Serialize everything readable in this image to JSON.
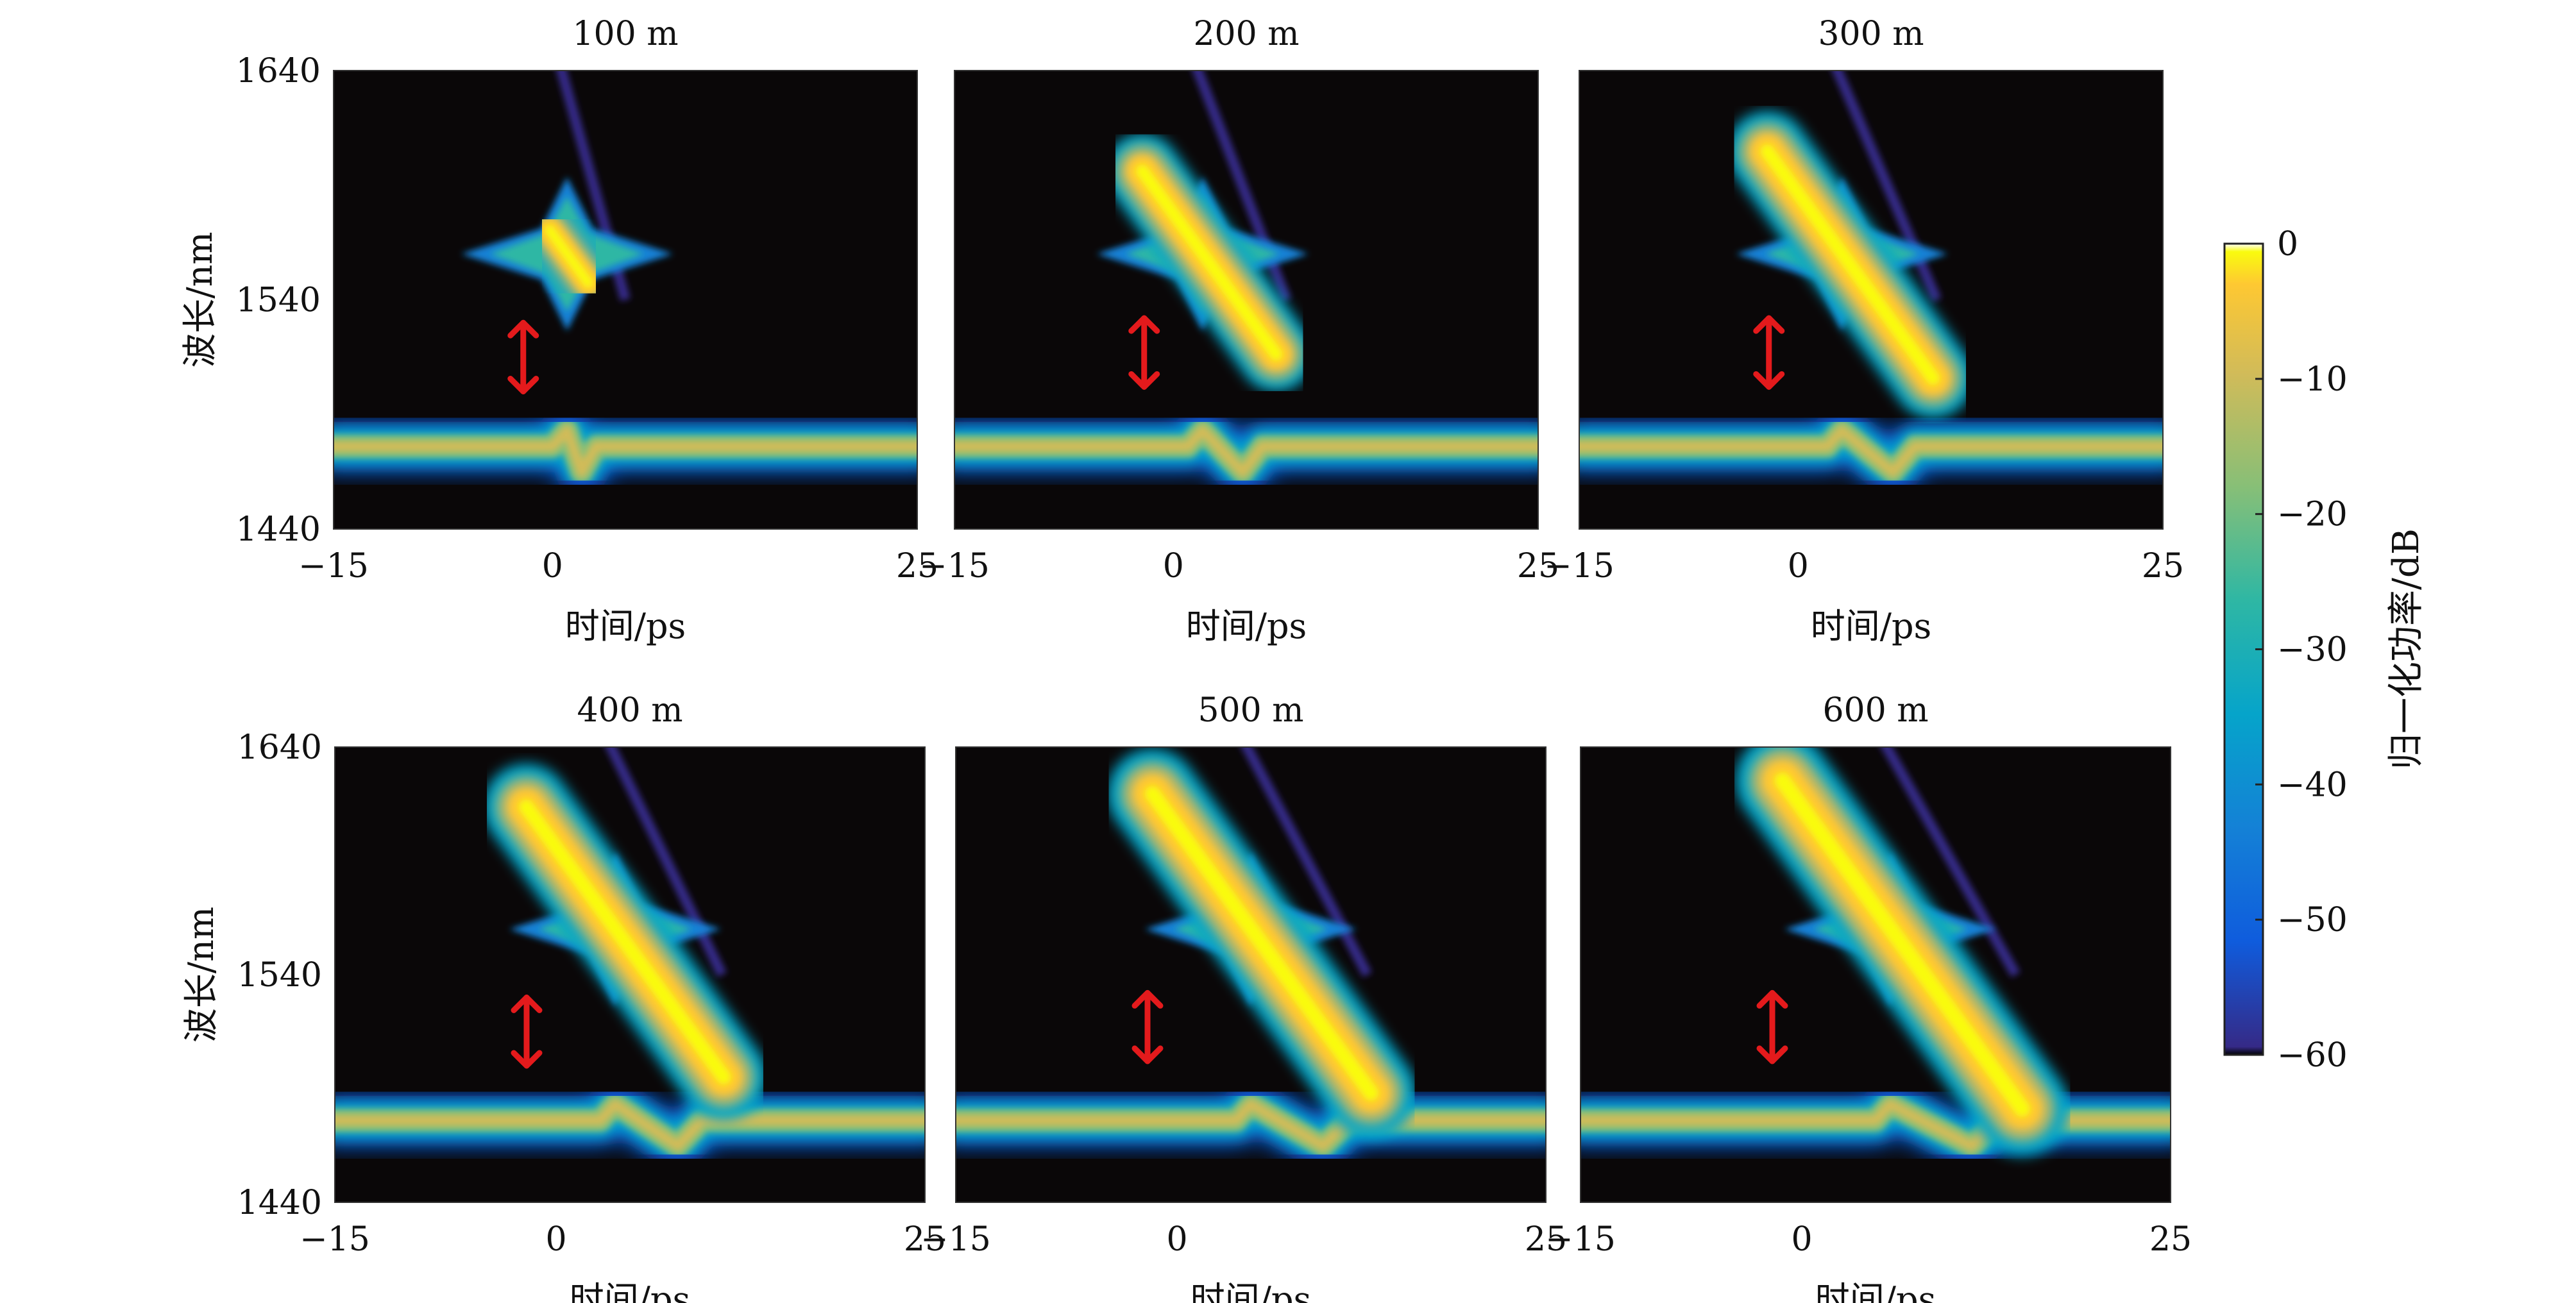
{
  "chart_data": {
    "type": "heatmap",
    "colormap": "parula",
    "colorbar": {
      "label": "归一化功率/dB",
      "ticks": [
        "0",
        "−10",
        "−20",
        "−30",
        "−40",
        "−50",
        "−60"
      ],
      "range": [
        -60,
        0
      ]
    },
    "shared": {
      "xlabel": "时间/ps",
      "ylabel": "波长/nm",
      "xticks": [
        "−15",
        "0",
        "25"
      ],
      "yticks": [
        "1640",
        "1540",
        "1440"
      ],
      "xlim": [
        -15,
        25
      ],
      "ylim": [
        1440,
        1640
      ]
    },
    "panels": [
      {
        "title": "100 m",
        "signal_time_ps": 1,
        "signal_tilt": 0.0,
        "soliton_length": 0.0,
        "arrow_time_ps": -2,
        "arrow_range_nm": [
          1500,
          1530
        ]
      },
      {
        "title": "200 m",
        "signal_time_ps": 2,
        "signal_tilt": 0.35,
        "soliton_length": 0.45,
        "arrow_time_ps": -2,
        "arrow_range_nm": [
          1502,
          1532
        ]
      },
      {
        "title": "300 m",
        "signal_time_ps": 3,
        "signal_tilt": 0.5,
        "soliton_length": 0.6,
        "arrow_time_ps": -2,
        "arrow_range_nm": [
          1502,
          1532
        ]
      },
      {
        "title": "400 m",
        "signal_time_ps": 4,
        "signal_tilt": 0.65,
        "soliton_length": 0.75,
        "arrow_time_ps": -2,
        "arrow_range_nm": [
          1500,
          1530
        ]
      },
      {
        "title": "500 m",
        "signal_time_ps": 5,
        "signal_tilt": 0.78,
        "soliton_length": 0.85,
        "arrow_time_ps": -2,
        "arrow_range_nm": [
          1502,
          1532
        ]
      },
      {
        "title": "600 m",
        "signal_time_ps": 6,
        "signal_tilt": 0.9,
        "soliton_length": 0.95,
        "arrow_time_ps": -2,
        "arrow_range_nm": [
          1502,
          1532
        ]
      }
    ],
    "pump_wavelength_nm": 1476,
    "colors": {
      "background": "#0a0708",
      "arrow": "#e41a1c",
      "parula": [
        "#352a87",
        "#0f5cdd",
        "#1481d6",
        "#06a4ca",
        "#2eb7a4",
        "#87bf77",
        "#d1bb59",
        "#fec832",
        "#f9fb0e"
      ]
    }
  }
}
